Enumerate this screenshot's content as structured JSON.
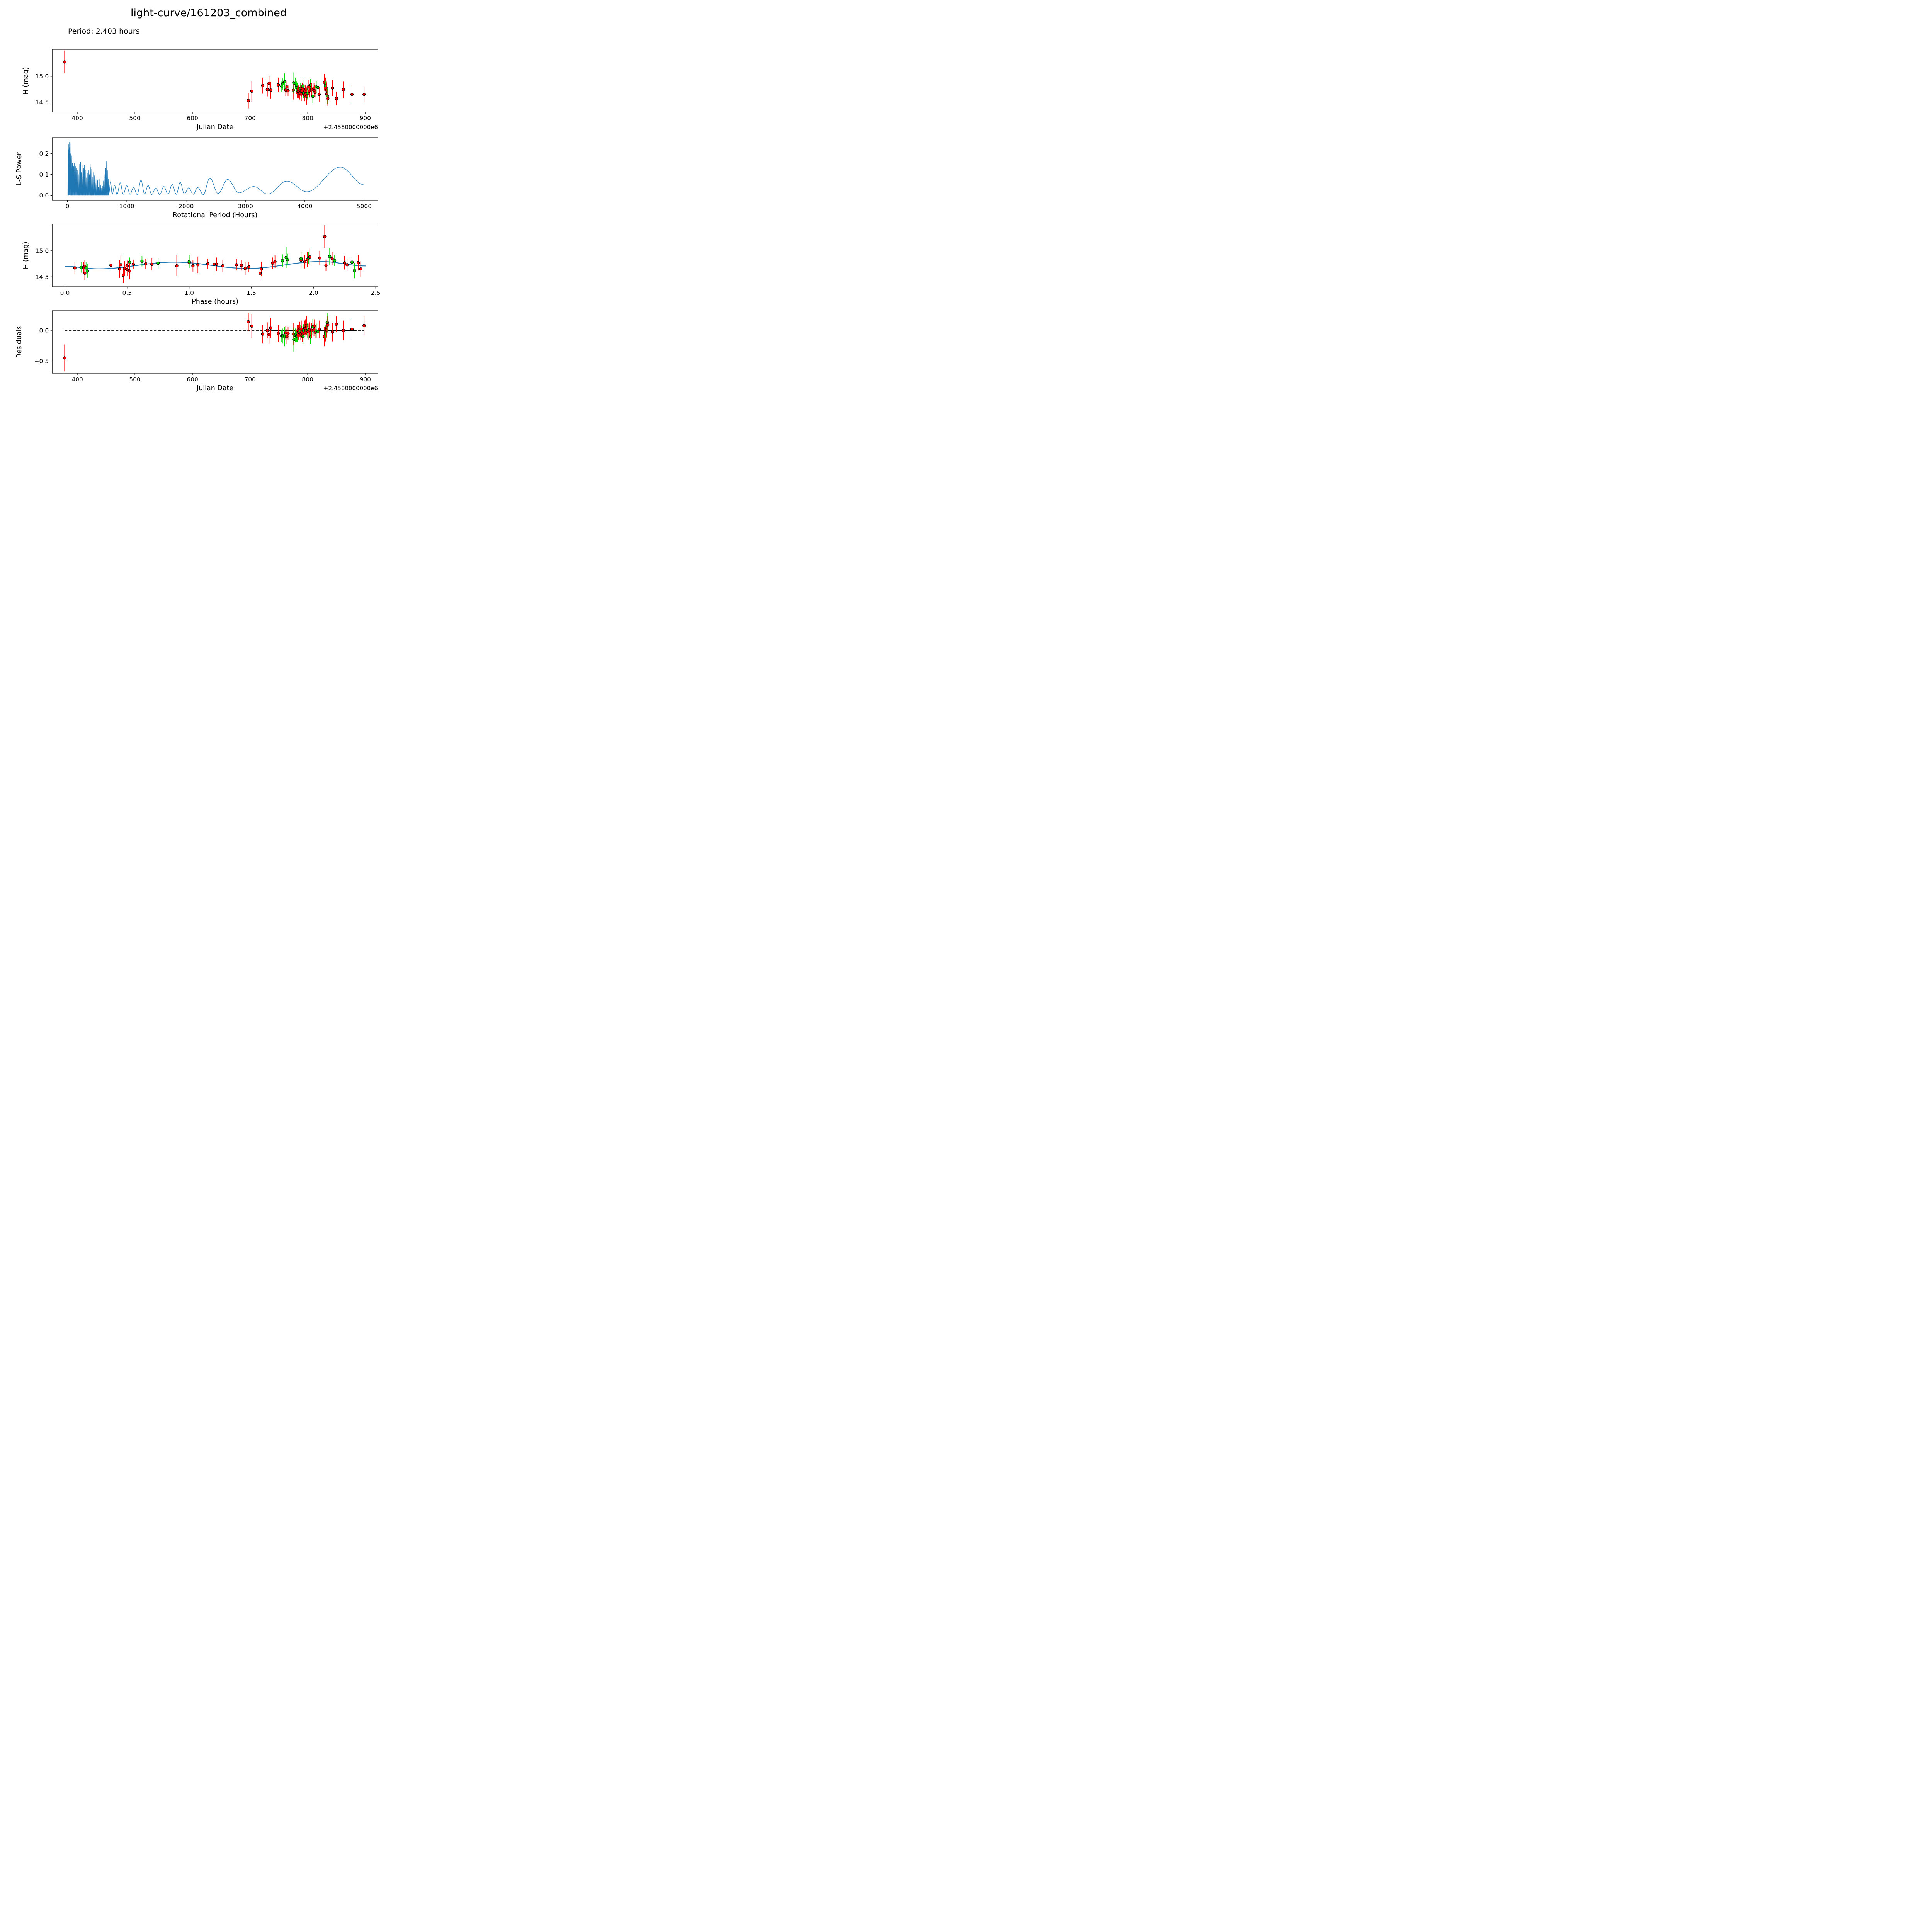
{
  "title": "light-curve/161203_combined",
  "subtitle": "Period: 2.403 hours",
  "colors": {
    "red": "#ff0000",
    "green": "#00dd00",
    "curve_blue": "#1f77b4",
    "axis": "#000000"
  },
  "chart_data": {
    "type": "multi-panel light curve figure",
    "point_fields": [
      "jd",
      "H_mag",
      "err",
      "phase_hr",
      "residual",
      "color"
    ],
    "points": [
      [
        378,
        15.27,
        0.22,
        2.09,
        -0.45,
        "r"
      ],
      [
        697,
        14.53,
        0.15,
        0.47,
        0.14,
        "r"
      ],
      [
        703,
        14.71,
        0.2,
        0.9,
        0.07,
        "r"
      ],
      [
        722,
        14.82,
        0.15,
        1.9,
        -0.06,
        "r"
      ],
      [
        730,
        14.74,
        0.13,
        1.22,
        0.0,
        "r"
      ],
      [
        733,
        14.86,
        0.14,
        2.05,
        -0.07,
        "r"
      ],
      [
        736,
        14.73,
        0.16,
        1.07,
        0.04,
        "r"
      ],
      [
        749,
        14.83,
        0.14,
        1.95,
        -0.05,
        "r"
      ],
      [
        755,
        14.8,
        0.1,
        1.75,
        -0.09,
        "g"
      ],
      [
        757,
        14.85,
        0.12,
        1.9,
        -0.09,
        "g"
      ],
      [
        760,
        14.89,
        0.16,
        2.13,
        -0.1,
        "g"
      ],
      [
        762,
        14.73,
        0.11,
        1.38,
        -0.04,
        "r"
      ],
      [
        764,
        14.79,
        0.12,
        1.69,
        -0.1,
        "r"
      ],
      [
        766,
        14.72,
        0.1,
        1.42,
        -0.05,
        "r"
      ],
      [
        775,
        14.73,
        0.18,
        0.45,
        -0.06,
        "r"
      ],
      [
        776,
        14.87,
        0.2,
        1.78,
        -0.15,
        "g"
      ],
      [
        779,
        14.86,
        0.11,
        1.96,
        -0.08,
        "g"
      ],
      [
        781,
        14.8,
        0.1,
        0.62,
        -0.09,
        "g"
      ],
      [
        782,
        14.78,
        0.09,
        0.52,
        -0.1,
        "g"
      ],
      [
        782,
        14.68,
        0.1,
        0.15,
        -0.01,
        "r"
      ],
      [
        784,
        14.7,
        0.12,
        0.16,
        -0.03,
        "r"
      ],
      [
        785,
        14.75,
        0.1,
        0.65,
        -0.03,
        "r"
      ],
      [
        786,
        14.67,
        0.12,
        0.08,
        0.02,
        "r"
      ],
      [
        787,
        14.76,
        0.1,
        0.75,
        -0.01,
        "g"
      ],
      [
        788,
        14.72,
        0.1,
        0.37,
        -0.06,
        "r"
      ],
      [
        789,
        14.66,
        0.14,
        0.48,
        0.02,
        "r"
      ],
      [
        790,
        14.71,
        0.1,
        0.5,
        -0.03,
        "r"
      ],
      [
        791,
        14.76,
        0.11,
        1.67,
        -0.08,
        "r"
      ],
      [
        792,
        14.81,
        0.12,
        1.75,
        -0.1,
        "g"
      ],
      [
        793,
        14.68,
        0.1,
        0.13,
        0.0,
        "g"
      ],
      [
        794,
        14.74,
        0.09,
        0.55,
        -0.05,
        "r"
      ],
      [
        795,
        14.64,
        0.12,
        0.5,
        0.04,
        "r"
      ],
      [
        796,
        14.71,
        0.11,
        1.03,
        0.07,
        "r"
      ],
      [
        797,
        14.75,
        0.1,
        1.15,
        0.0,
        "r"
      ],
      [
        798,
        14.61,
        0.16,
        0.52,
        0.08,
        "r"
      ],
      [
        800,
        14.67,
        0.12,
        0.17,
        0.0,
        "g"
      ],
      [
        801,
        14.79,
        0.13,
        1.93,
        -0.02,
        "r"
      ],
      [
        803,
        14.71,
        0.12,
        1.27,
        0.01,
        "r"
      ],
      [
        805,
        14.83,
        0.11,
        1.79,
        -0.11,
        "g"
      ],
      [
        807,
        14.74,
        0.12,
        0.7,
        0.0,
        "r"
      ],
      [
        809,
        14.61,
        0.13,
        0.18,
        0.06,
        "g"
      ],
      [
        811,
        14.77,
        0.1,
        1.0,
        0.01,
        "r"
      ],
      [
        812,
        14.72,
        0.11,
        2.1,
        0.07,
        "r"
      ],
      [
        813,
        14.69,
        0.1,
        1.48,
        -0.03,
        "r"
      ],
      [
        815,
        14.79,
        0.12,
        1.0,
        -0.01,
        "g"
      ],
      [
        818,
        14.78,
        0.1,
        2.31,
        -0.02,
        "g"
      ],
      [
        820,
        14.65,
        0.14,
        1.58,
        0.02,
        "r"
      ],
      [
        829,
        14.88,
        0.16,
        1.97,
        -0.1,
        "r"
      ],
      [
        831,
        14.85,
        0.12,
        2.15,
        -0.06,
        "r"
      ],
      [
        831,
        14.81,
        0.1,
        2.17,
        -0.02,
        "g"
      ],
      [
        832,
        14.77,
        0.13,
        2.25,
        0.0,
        "r"
      ],
      [
        833,
        14.73,
        0.12,
        2.27,
        0.04,
        "r"
      ],
      [
        833,
        14.66,
        0.12,
        1.45,
        0.01,
        "r"
      ],
      [
        834,
        14.62,
        0.15,
        2.33,
        0.13,
        "g"
      ],
      [
        835,
        14.57,
        0.14,
        1.57,
        0.09,
        "r"
      ],
      [
        843,
        14.77,
        0.15,
        2.36,
        -0.03,
        "r"
      ],
      [
        850,
        14.57,
        0.13,
        0.16,
        0.1,
        "r"
      ],
      [
        862,
        14.74,
        0.16,
        1.2,
        0.0,
        "r"
      ],
      [
        877,
        14.65,
        0.17,
        0.44,
        0.02,
        "r"
      ],
      [
        898,
        14.65,
        0.15,
        2.38,
        0.08,
        "r"
      ]
    ],
    "panels": [
      {
        "id": "jd_mag",
        "kind": "errorbar",
        "xlabel": "Julian Date",
        "ylabel": "H (mag)",
        "x_offset_text": "+2.4580000000e6",
        "xlim": [
          356.5,
          922
        ],
        "ylim": [
          14.31,
          15.51
        ],
        "xticks": [
          400,
          500,
          600,
          700,
          800,
          900
        ],
        "xtick_labels": [
          "400",
          "500",
          "600",
          "700",
          "800",
          "900"
        ],
        "yticks": [
          15.0,
          14.5
        ],
        "ytick_labels": [
          "15.0",
          "14.5"
        ],
        "x_field": "jd",
        "y_field": "H_mag"
      },
      {
        "id": "periodogram",
        "kind": "periodogram",
        "xlabel": "Rotational Period (Hours)",
        "ylabel": "L-S Power",
        "xlim": [
          -256,
          5232
        ],
        "ylim": [
          -0.023,
          0.2765
        ],
        "xticks": [
          0,
          1000,
          2000,
          3000,
          4000,
          5000
        ],
        "xtick_labels": [
          "0",
          "1000",
          "2000",
          "3000",
          "4000",
          "5000"
        ],
        "yticks": [
          0.0,
          0.1,
          0.2
        ],
        "ytick_labels": [
          "0.0",
          "0.1",
          "0.2"
        ],
        "spikes": [
          [
            10,
            0.268
          ],
          [
            16,
            0.22
          ],
          [
            22,
            0.245
          ],
          [
            30,
            0.255
          ],
          [
            38,
            0.23
          ],
          [
            46,
            0.25
          ],
          [
            55,
            0.2
          ],
          [
            65,
            0.17
          ],
          [
            75,
            0.19
          ],
          [
            85,
            0.155
          ],
          [
            95,
            0.175
          ],
          [
            105,
            0.14
          ],
          [
            115,
            0.155
          ],
          [
            125,
            0.12
          ],
          [
            135,
            0.14
          ],
          [
            148,
            0.13
          ],
          [
            160,
            0.165
          ],
          [
            172,
            0.12
          ],
          [
            185,
            0.1
          ],
          [
            198,
            0.15
          ],
          [
            210,
            0.12
          ],
          [
            222,
            0.16
          ],
          [
            235,
            0.11
          ],
          [
            248,
            0.145
          ],
          [
            260,
            0.09
          ],
          [
            272,
            0.13
          ],
          [
            285,
            0.145
          ],
          [
            298,
            0.1
          ],
          [
            310,
            0.12
          ],
          [
            322,
            0.085
          ],
          [
            335,
            0.105
          ],
          [
            348,
            0.075
          ],
          [
            360,
            0.12
          ],
          [
            372,
            0.1
          ],
          [
            385,
            0.15
          ],
          [
            395,
            0.135
          ],
          [
            408,
            0.125
          ],
          [
            420,
            0.09
          ],
          [
            432,
            0.11
          ],
          [
            445,
            0.07
          ],
          [
            458,
            0.095
          ],
          [
            470,
            0.06
          ],
          [
            482,
            0.08
          ],
          [
            495,
            0.05
          ],
          [
            508,
            0.075
          ],
          [
            520,
            0.04
          ],
          [
            532,
            0.065
          ],
          [
            545,
            0.08
          ],
          [
            558,
            0.05
          ],
          [
            570,
            0.035
          ],
          [
            582,
            0.06
          ],
          [
            595,
            0.045
          ],
          [
            608,
            0.07
          ],
          [
            620,
            0.1
          ],
          [
            632,
            0.08
          ],
          [
            645,
            0.13
          ],
          [
            655,
            0.165
          ],
          [
            668,
            0.145
          ],
          [
            680,
            0.12
          ],
          [
            692,
            0.08
          ]
        ],
        "lobes": [
          [
            700,
            0.01
          ],
          [
            725,
            0.065
          ],
          [
            755,
            0.005
          ],
          [
            795,
            0.048
          ],
          [
            835,
            0.004
          ],
          [
            890,
            0.06
          ],
          [
            940,
            0.005
          ],
          [
            1000,
            0.046
          ],
          [
            1055,
            0.005
          ],
          [
            1115,
            0.038
          ],
          [
            1175,
            0.004
          ],
          [
            1240,
            0.072
          ],
          [
            1300,
            0.006
          ],
          [
            1360,
            0.047
          ],
          [
            1420,
            0.004
          ],
          [
            1490,
            0.035
          ],
          [
            1555,
            0.004
          ],
          [
            1625,
            0.042
          ],
          [
            1695,
            0.005
          ],
          [
            1765,
            0.052
          ],
          [
            1835,
            0.005
          ],
          [
            1900,
            0.062
          ],
          [
            1970,
            0.007
          ],
          [
            2045,
            0.036
          ],
          [
            2120,
            0.005
          ],
          [
            2195,
            0.037
          ],
          [
            2290,
            0.004
          ],
          [
            2400,
            0.083
          ],
          [
            2540,
            0.009
          ],
          [
            2700,
            0.076
          ],
          [
            2890,
            0.012
          ],
          [
            3140,
            0.042
          ],
          [
            3375,
            0.006
          ],
          [
            3700,
            0.068
          ],
          [
            4035,
            0.017
          ],
          [
            4600,
            0.135
          ],
          [
            5000,
            0.05
          ]
        ]
      },
      {
        "id": "phase_mag",
        "kind": "errorbar",
        "xlabel": "Phase (hours)",
        "ylabel": "H (mag)",
        "xlim": [
          -0.102,
          2.518
        ],
        "ylim": [
          14.31,
          15.51
        ],
        "xticks": [
          0.0,
          0.5,
          1.0,
          1.5,
          2.0,
          2.5
        ],
        "xtick_labels": [
          "0.0",
          "0.5",
          "1.0",
          "1.5",
          "2.0",
          "2.5"
        ],
        "yticks": [
          15.0,
          14.5
        ],
        "ytick_labels": [
          "15.0",
          "14.5"
        ],
        "x_field": "phase_hr",
        "y_field": "H_mag",
        "model_curve": [
          [
            0.0,
            14.7
          ],
          [
            0.27,
            14.652
          ],
          [
            0.88,
            14.782
          ],
          [
            1.47,
            14.66
          ],
          [
            2.06,
            14.793
          ],
          [
            2.42,
            14.708
          ]
        ]
      },
      {
        "id": "residuals",
        "kind": "errorbar",
        "xlabel": "Julian Date",
        "ylabel": "Residuals",
        "x_offset_text": "+2.4580000000e6",
        "xlim": [
          356.5,
          922
        ],
        "ylim": [
          -0.7,
          0.322
        ],
        "xticks": [
          400,
          500,
          600,
          700,
          800,
          900
        ],
        "xtick_labels": [
          "400",
          "500",
          "600",
          "700",
          "800",
          "900"
        ],
        "yticks": [
          0.0,
          -0.5
        ],
        "ytick_labels": [
          "0.0",
          "−0.5"
        ],
        "x_field": "jd",
        "y_field": "residual",
        "zero_line": {
          "dashed_span": [
            378,
            898
          ],
          "solid_span": [
            737,
            885
          ],
          "y": 0.0
        }
      }
    ]
  }
}
